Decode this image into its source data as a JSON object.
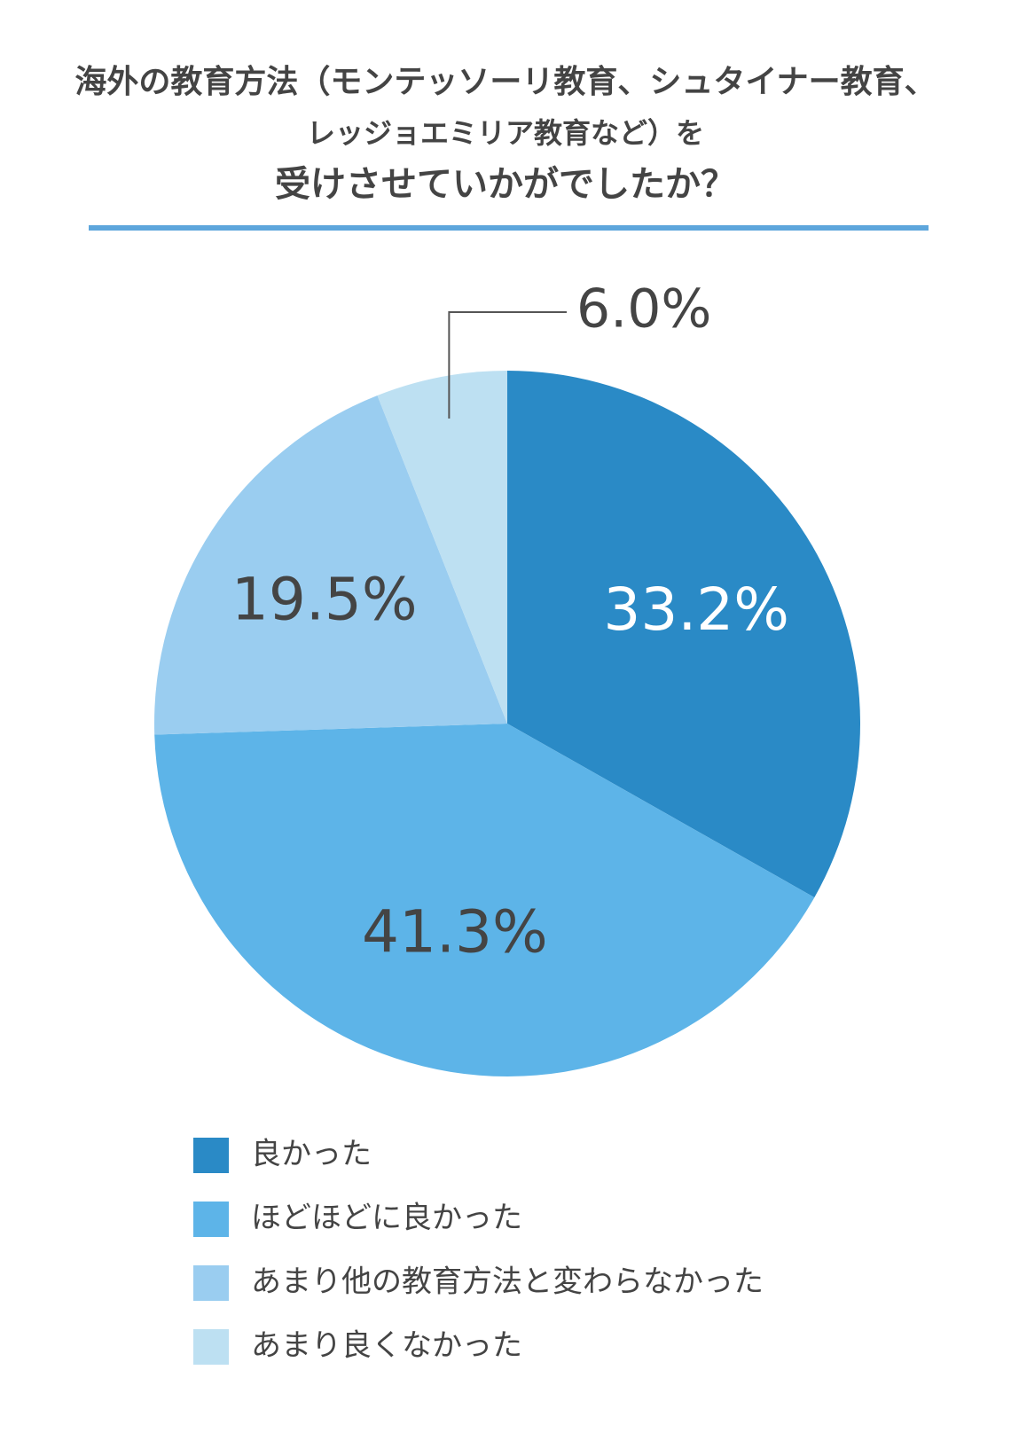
{
  "chart_data": {
    "type": "pie",
    "title_lines": [
      "海外の教育方法（モンテッソーリ教育、シュタイナー教育、",
      "レッジョエミリア教育など）を",
      "受けさせていかがでしたか？"
    ],
    "categories": [
      "良かった",
      "ほどほどに良かった",
      "あまり他の教育方法と変わらなかった",
      "あまり良くなかった"
    ],
    "values": [
      33.2,
      41.3,
      19.5,
      6.0
    ],
    "value_labels": [
      "33.2%",
      "41.3%",
      "19.5%",
      "6.0%"
    ],
    "colors": [
      "#2a8ac6",
      "#5db4e8",
      "#9acdf0",
      "#bde0f2"
    ]
  }
}
